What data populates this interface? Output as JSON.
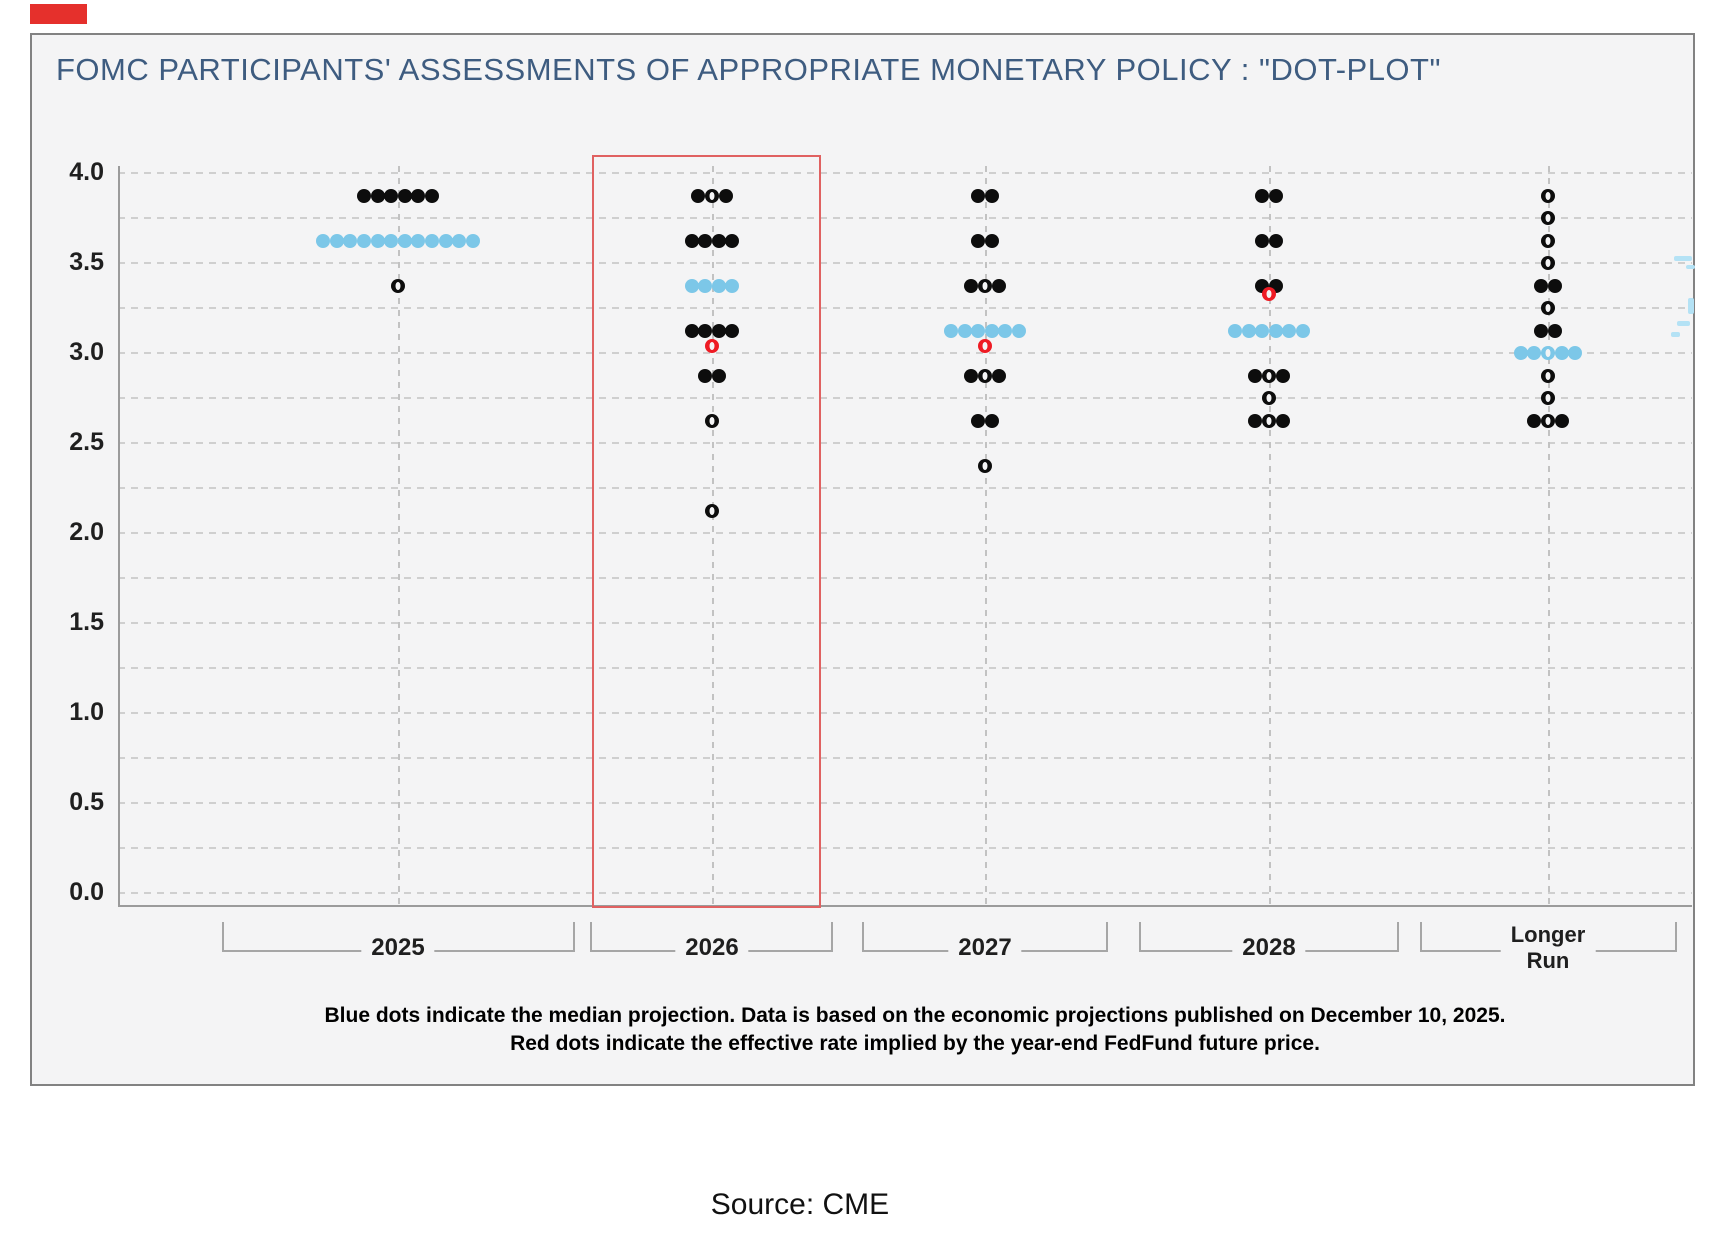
{
  "source": {
    "label": "Source: CME"
  },
  "footnote": {
    "line1": "Blue dots indicate the median projection. Data is based on the economic projections published on December 10, 2025.",
    "line2": "Red dots indicate the effective rate implied by the year-end FedFund future price."
  },
  "colors": {
    "dot_black": "#0d0d0d",
    "dot_blue": "#7cc7e8",
    "dot_red": "#ee1b24",
    "highlight_box_red": "#e06161",
    "title_blue": "#3e5c80",
    "panel_bg": "#f4f4f5",
    "corner_mark_red": "#e5302c"
  },
  "chart_data": {
    "type": "scatter",
    "title": "FOMC PARTICIPANTS' ASSESSMENTS OF APPROPRIATE MONETARY POLICY : \"DOT-PLOT\"",
    "xlabel": "",
    "ylabel": "",
    "ylim": [
      0.0,
      4.0
    ],
    "y_ticks": [
      "4.0",
      "3.5",
      "3.0",
      "2.5",
      "2.0",
      "1.5",
      "1.0",
      "0.5",
      "0.0"
    ],
    "grid_step": 0.25,
    "grid": true,
    "highlighted_column": "2026",
    "legend": {
      "blue_dots": "median projection",
      "red_dots": "effective rate implied by the year-end FedFund future price",
      "black_dots": "FOMC participant projections"
    },
    "columns": [
      {
        "label": "2025",
        "dots": [
          {
            "rate": 3.875,
            "color": "black",
            "marks": [
              "s",
              "s",
              "s",
              "s",
              "s",
              "s"
            ]
          },
          {
            "rate": 3.625,
            "color": "blue",
            "marks": [
              "s",
              "s",
              "s",
              "s",
              "s",
              "s",
              "s",
              "s",
              "s",
              "s",
              "s",
              "s"
            ]
          },
          {
            "rate": 3.375,
            "color": "black",
            "marks": [
              "h"
            ]
          }
        ]
      },
      {
        "label": "2026",
        "highlighted": true,
        "dots": [
          {
            "rate": 3.875,
            "color": "black",
            "marks": [
              "s",
              "h",
              "s"
            ]
          },
          {
            "rate": 3.625,
            "color": "black",
            "marks": [
              "s",
              "s",
              "s",
              "s"
            ]
          },
          {
            "rate": 3.375,
            "color": "blue",
            "marks": [
              "s",
              "s",
              "s",
              "s"
            ]
          },
          {
            "rate": 3.125,
            "color": "black",
            "marks": [
              "s",
              "s",
              "s",
              "s"
            ]
          },
          {
            "rate": 3.04,
            "color": "red",
            "marks": [
              "h"
            ]
          },
          {
            "rate": 2.875,
            "color": "black",
            "marks": [
              "s",
              "s"
            ]
          },
          {
            "rate": 2.625,
            "color": "black",
            "marks": [
              "h"
            ]
          },
          {
            "rate": 2.125,
            "color": "black",
            "marks": [
              "h"
            ]
          }
        ]
      },
      {
        "label": "2027",
        "dots": [
          {
            "rate": 3.875,
            "color": "black",
            "marks": [
              "s",
              "s"
            ]
          },
          {
            "rate": 3.625,
            "color": "black",
            "marks": [
              "s",
              "s"
            ]
          },
          {
            "rate": 3.375,
            "color": "black",
            "marks": [
              "s",
              "h",
              "s"
            ]
          },
          {
            "rate": 3.125,
            "color": "blue",
            "marks": [
              "s",
              "s",
              "s",
              "s",
              "s",
              "s"
            ]
          },
          {
            "rate": 3.04,
            "color": "red",
            "marks": [
              "h"
            ]
          },
          {
            "rate": 2.875,
            "color": "black",
            "marks": [
              "s",
              "h",
              "s"
            ]
          },
          {
            "rate": 2.625,
            "color": "black",
            "marks": [
              "s",
              "s"
            ]
          },
          {
            "rate": 2.375,
            "color": "black",
            "marks": [
              "h"
            ]
          }
        ]
      },
      {
        "label": "2028",
        "dots": [
          {
            "rate": 3.875,
            "color": "black",
            "marks": [
              "s",
              "s"
            ]
          },
          {
            "rate": 3.625,
            "color": "black",
            "marks": [
              "s",
              "s"
            ]
          },
          {
            "rate": 3.375,
            "color": "black",
            "marks": [
              "s",
              "s"
            ]
          },
          {
            "rate": 3.33,
            "color": "red",
            "marks": [
              "h"
            ]
          },
          {
            "rate": 3.125,
            "color": "blue",
            "marks": [
              "s",
              "s",
              "s",
              "s",
              "s",
              "s"
            ]
          },
          {
            "rate": 2.875,
            "color": "black",
            "marks": [
              "s",
              "h",
              "s"
            ]
          },
          {
            "rate": 2.75,
            "color": "black",
            "marks": [
              "h"
            ]
          },
          {
            "rate": 2.625,
            "color": "black",
            "marks": [
              "s",
              "h",
              "s"
            ]
          }
        ]
      },
      {
        "label": "Longer Run",
        "label_lines": [
          "Longer",
          "Run"
        ],
        "dots": [
          {
            "rate": 3.875,
            "color": "black",
            "marks": [
              "h"
            ]
          },
          {
            "rate": 3.75,
            "color": "black",
            "marks": [
              "h"
            ]
          },
          {
            "rate": 3.625,
            "color": "black",
            "marks": [
              "h"
            ]
          },
          {
            "rate": 3.5,
            "color": "black",
            "marks": [
              "h"
            ]
          },
          {
            "rate": 3.375,
            "color": "black",
            "marks": [
              "s",
              "s"
            ]
          },
          {
            "rate": 3.25,
            "color": "black",
            "marks": [
              "h"
            ]
          },
          {
            "rate": 3.125,
            "color": "black",
            "marks": [
              "s",
              "s"
            ]
          },
          {
            "rate": 3.0,
            "color": "blue",
            "marks": [
              "s",
              "s",
              "h",
              "s",
              "s"
            ]
          },
          {
            "rate": 2.875,
            "color": "black",
            "marks": [
              "h"
            ]
          },
          {
            "rate": 2.75,
            "color": "black",
            "marks": [
              "h"
            ]
          },
          {
            "rate": 2.625,
            "color": "black",
            "marks": [
              "s",
              "h",
              "s"
            ]
          }
        ]
      }
    ]
  }
}
